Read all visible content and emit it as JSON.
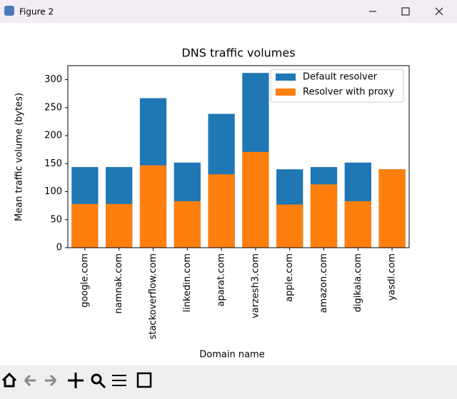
{
  "window_title": "Figure 2",
  "chart_data": {
    "type": "bar",
    "overlap": true,
    "title": "DNS traffic volumes",
    "x_label": "Domain name",
    "y_label": "Mean traffic volume (bytes)",
    "categories": [
      "google.com",
      "namnak.com",
      "stackoverflow.com",
      "linkedin.com",
      "aparat.com",
      "varzesh3.com",
      "apple.com",
      "amazon.com",
      "digikala.com",
      "yasdl.com"
    ],
    "series": [
      {
        "name": "Default resolver",
        "color": "#1f77b4",
        "values": [
          144,
          144,
          267,
          152,
          239,
          312,
          140,
          144,
          152,
          140
        ]
      },
      {
        "name": "Resolver with proxy",
        "color": "#ff7f0e",
        "values": [
          78,
          78,
          147,
          83,
          131,
          171,
          77,
          113,
          83,
          140
        ]
      }
    ],
    "ylim": [
      0,
      325
    ],
    "yticks": [
      0,
      50,
      100,
      150,
      200,
      250,
      300
    ],
    "legend": "upper right"
  }
}
